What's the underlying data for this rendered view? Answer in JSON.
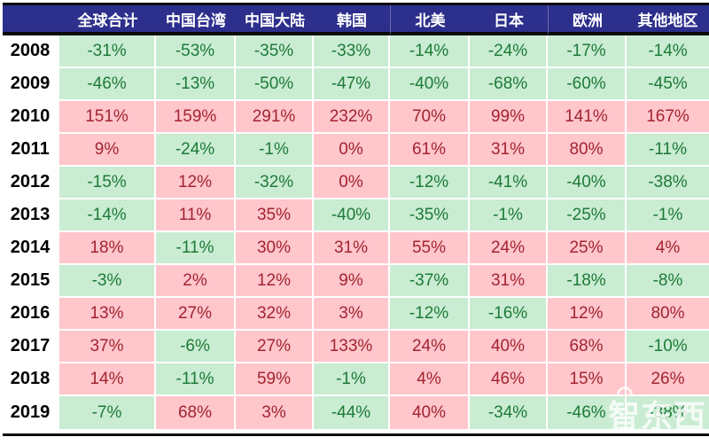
{
  "chart_data": {
    "type": "table",
    "unit": "%",
    "corner_label": "",
    "columns": [
      "全球合计",
      "中国台湾",
      "中国大陆",
      "韩国",
      "北美",
      "日本",
      "欧洲",
      "其他地区"
    ],
    "rows": [
      {
        "year": "2008",
        "values": [
          -31,
          -53,
          -35,
          -33,
          -14,
          -24,
          -17,
          -14
        ]
      },
      {
        "year": "2009",
        "values": [
          -46,
          -13,
          -50,
          -47,
          -40,
          -68,
          -60,
          -45
        ]
      },
      {
        "year": "2010",
        "values": [
          151,
          159,
          291,
          232,
          70,
          99,
          141,
          167
        ]
      },
      {
        "year": "2011",
        "values": [
          9,
          -24,
          -1,
          0,
          61,
          31,
          80,
          -11
        ]
      },
      {
        "year": "2012",
        "values": [
          -15,
          12,
          -32,
          0,
          -12,
          -41,
          -40,
          -38
        ]
      },
      {
        "year": "2013",
        "values": [
          -14,
          11,
          35,
          -40,
          -35,
          -1,
          -25,
          -1
        ]
      },
      {
        "year": "2014",
        "values": [
          18,
          -11,
          30,
          31,
          55,
          24,
          25,
          4
        ]
      },
      {
        "year": "2015",
        "values": [
          -3,
          2,
          12,
          9,
          -37,
          31,
          -18,
          -8
        ]
      },
      {
        "year": "2016",
        "values": [
          13,
          27,
          32,
          3,
          -12,
          -16,
          12,
          80
        ]
      },
      {
        "year": "2017",
        "values": [
          37,
          -6,
          27,
          133,
          24,
          40,
          68,
          -10
        ]
      },
      {
        "year": "2018",
        "values": [
          14,
          -11,
          59,
          -1,
          4,
          46,
          15,
          26
        ]
      },
      {
        "year": "2019",
        "values": [
          -7,
          68,
          3,
          -44,
          40,
          -34,
          -46,
          -38
        ]
      }
    ],
    "value_format": "{value}%",
    "legend": "positive values: pink background / dark-red text; negative values: green background / green text"
  },
  "colors": {
    "header_bg": "#2d2f8c",
    "header_text": "#ffffff",
    "positive_bg": "#ffc6cc",
    "positive_text": "#a32430",
    "negative_bg": "#c9ecd2",
    "negative_text": "#1e7a38",
    "line_color": "#0a0a0a"
  },
  "watermark": {
    "text": "智东西",
    "subtext": "zhidx"
  }
}
